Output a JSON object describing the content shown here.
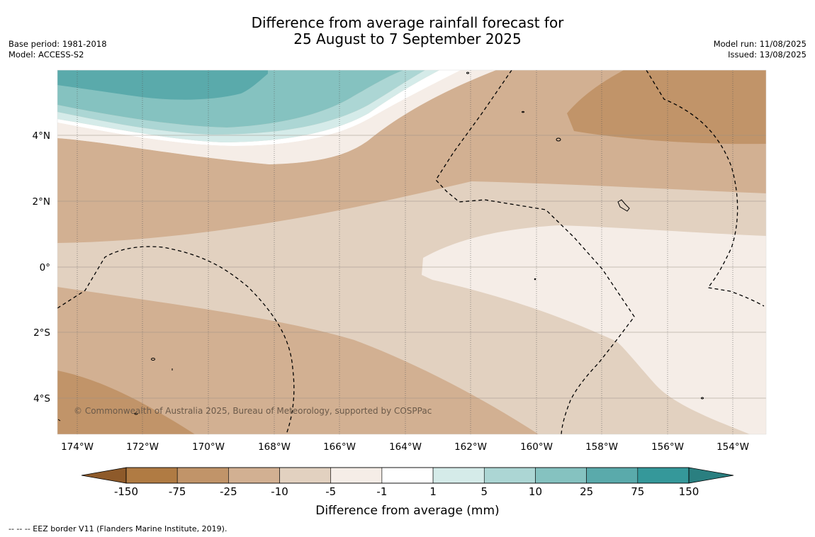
{
  "title": {
    "line1": "Difference from average rainfall forecast for",
    "line2": "25 August to 7 September 2025"
  },
  "meta_left": {
    "base_period": "Base period: 1981-2018",
    "model": "Model: ACCESS-S2"
  },
  "meta_right": {
    "model_run": "Model run: 11/08/2025",
    "issued": "Issued: 13/08/2025"
  },
  "map": {
    "lat_ticks": [
      "4°N",
      "2°N",
      "0°",
      "2°S",
      "4°S"
    ],
    "lon_ticks": [
      "174°W",
      "172°W",
      "170°W",
      "168°W",
      "166°W",
      "164°W",
      "162°W",
      "160°W",
      "158°W",
      "156°W",
      "154°W"
    ],
    "copyright": "© Commonwealth of Australia 2025, Bureau of Meteorology, supported by COSPPac"
  },
  "colorbar": {
    "labels": [
      "-150",
      "-75",
      "-25",
      "-10",
      "-5",
      "-1",
      "1",
      "5",
      "10",
      "25",
      "75",
      "150"
    ],
    "colors": [
      "#b07b43",
      "#c19469",
      "#d2b092",
      "#e2d1c0",
      "#f5ede7",
      "#ffffff",
      "#d5ebe9",
      "#acd6d4",
      "#85c2c0",
      "#5aaaab",
      "#35989a"
    ],
    "low_extend_color": "#8e5a2a",
    "high_extend_color": "#2a7f80",
    "title": "Difference from average (mm)"
  },
  "footer": "--  --  -- EEZ border V11 (Flanders Marine Institute, 2019)."
}
